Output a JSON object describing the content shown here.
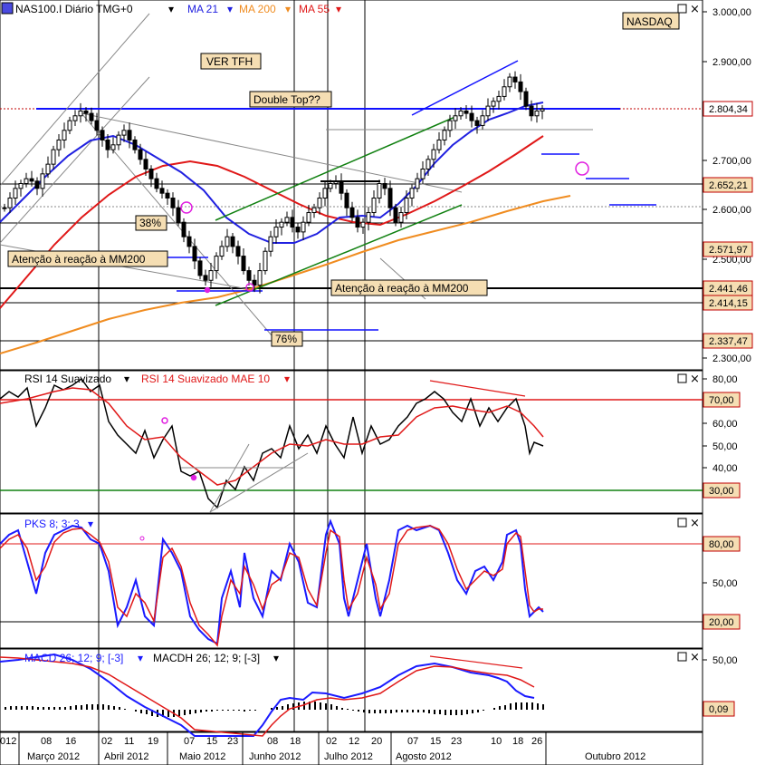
{
  "colors": {
    "background": "#ffffff",
    "price_up": "#000000",
    "ma21": "#2020e0",
    "ma200": "#f08c20",
    "ma55": "#e01818",
    "rsi": "#000000",
    "rsi_ma": "#e01818",
    "pks_k": "#1a1aff",
    "pks_d": "#e01818",
    "macd": "#1a1aff",
    "macd_signal": "#e01818",
    "hist": "#000000",
    "note_bg": "#f5deb3",
    "trend_green": "#108010",
    "trend_blue": "#1010ff",
    "tag_red": "#c00000"
  },
  "header": {
    "symbol_icon": "chart-icon",
    "symbol": "NAS100.I Diário TMG+0",
    "ma21": "MA 21",
    "ma200": "MA 200",
    "ma55": "MA 55",
    "market_tag": "NASDAQ"
  },
  "annotations": {
    "ver_tfh": "VER  TFH",
    "double_top": "Double Top??",
    "pct38": "38%",
    "pct76": "76%",
    "atencao_left": "Atenção à reação à MM200",
    "atencao_right": "Atenção à reação à MM200"
  },
  "price_axis": {
    "ticks": [
      "3.000,00",
      "2.900,00",
      "2.700,00",
      "2.600,00",
      "2.500,00",
      "2.300,00"
    ],
    "tags": [
      "2.804,34",
      "2.652,21",
      "2.571,97",
      "2.441,46",
      "2.414,15",
      "2.337,47"
    ]
  },
  "rsi_panel": {
    "label_main": "RSI 14 Suavizado",
    "label_ma": "RSI 14 Suavizado MAE 10",
    "ticks": [
      "80,00",
      "60,00",
      "50,00",
      "40,00"
    ],
    "tags": [
      "70,00",
      "30,00"
    ]
  },
  "pks_panel": {
    "label": "PKS 8; 3; 3",
    "ticks": [
      "50,00"
    ],
    "tags": [
      "80,00",
      "20,00"
    ]
  },
  "macd_panel": {
    "label_macd": "MACD 26; 12; 9; [-3]",
    "label_hist": "MACDH 26; 12; 9; [-3]",
    "ticks": [
      "50,00"
    ],
    "tags": [
      "0,09"
    ]
  },
  "time_axis": {
    "days": [
      "012",
      "08",
      "16",
      "02",
      "11",
      "19",
      "07",
      "15",
      "23",
      "08",
      "18",
      "02",
      "12",
      "20",
      "07",
      "15",
      "23",
      "10",
      "18",
      "26"
    ],
    "months": [
      "Março 2012",
      "Abril 2012",
      "Maio 2012",
      "Junho 2012",
      "Julho 2012",
      "Agosto 2012",
      "Outubro 2012"
    ]
  },
  "chart_data": {
    "type": "candlestick",
    "title": "NAS100.I Diário TMG+0",
    "y_range": [
      2280,
      3020
    ],
    "series": [
      {
        "name": "NAS100.I",
        "values": [
          2600,
          2620,
          2640,
          2650,
          2660,
          2655,
          2640,
          2670,
          2690,
          2720,
          2740,
          2760,
          2780,
          2790,
          2800,
          2795,
          2780,
          2760,
          2740,
          2720,
          2730,
          2750,
          2760,
          2740,
          2720,
          2700,
          2680,
          2660,
          2640,
          2630,
          2620,
          2600,
          2570,
          2540,
          2520,
          2490,
          2460,
          2450,
          2470,
          2500,
          2520,
          2540,
          2520,
          2500,
          2470,
          2450,
          2440,
          2470,
          2510,
          2540,
          2560,
          2570,
          2580,
          2560,
          2550,
          2570,
          2590,
          2600,
          2620,
          2640,
          2650,
          2655,
          2630,
          2600,
          2580,
          2560,
          2570,
          2590,
          2620,
          2650,
          2640,
          2600,
          2570,
          2590,
          2620,
          2640,
          2660,
          2680,
          2700,
          2720,
          2740,
          2760,
          2780,
          2790,
          2800,
          2795,
          2780,
          2770,
          2790,
          2810,
          2820,
          2830,
          2850,
          2870,
          2860,
          2840,
          2810,
          2790,
          2800,
          2804
        ]
      },
      {
        "name": "MA 21",
        "values": [
          2580,
          2590,
          2600,
          2615,
          2630,
          2645,
          2660,
          2680,
          2700,
          2715,
          2725,
          2735,
          2740,
          2745,
          2745,
          2740,
          2735,
          2725,
          2715,
          2700,
          2685,
          2670,
          2650,
          2630,
          2610,
          2590,
          2570,
          2555,
          2545,
          2540,
          2535,
          2530,
          2525,
          2520,
          2525,
          2530,
          2540,
          2550,
          2560,
          2565,
          2570,
          2575,
          2580,
          2585,
          2590,
          2600,
          2615,
          2630,
          2650,
          2670,
          2690,
          2710,
          2730,
          2750,
          2765,
          2775,
          2785,
          2795,
          2800,
          2805
        ]
      },
      {
        "name": "MA 55",
        "values": [
          2390,
          2410,
          2440,
          2480,
          2520,
          2560,
          2600,
          2630,
          2660,
          2680,
          2690,
          2700,
          2695,
          2685,
          2670,
          2650,
          2630,
          2610,
          2590,
          2580,
          2575,
          2580,
          2590,
          2600,
          2605,
          2600,
          2590,
          2580,
          2575,
          2580,
          2590,
          2610,
          2630,
          2650,
          2670,
          2690,
          2710,
          2730,
          2750
        ]
      },
      {
        "name": "MA 200",
        "values": [
          2300,
          2320,
          2340,
          2360,
          2380,
          2400,
          2420,
          2440,
          2460,
          2480,
          2500,
          2520,
          2540,
          2560,
          2580,
          2600,
          2620,
          2635
        ]
      }
    ],
    "price_tags": [
      2804.34,
      2652.21,
      2571.97,
      2441.46,
      2414.15,
      2337.47
    ],
    "rsi": {
      "name": "RSI 14 Suavizado",
      "levels": [
        70,
        30
      ],
      "ylim": [
        20,
        82
      ]
    },
    "pks": {
      "name": "PKS 8; 3; 3",
      "levels": [
        80,
        20
      ],
      "ylim": [
        0,
        100
      ]
    },
    "macd": {
      "name": "MACD 26; 12; 9; [-3]",
      "last": 0.09
    }
  }
}
